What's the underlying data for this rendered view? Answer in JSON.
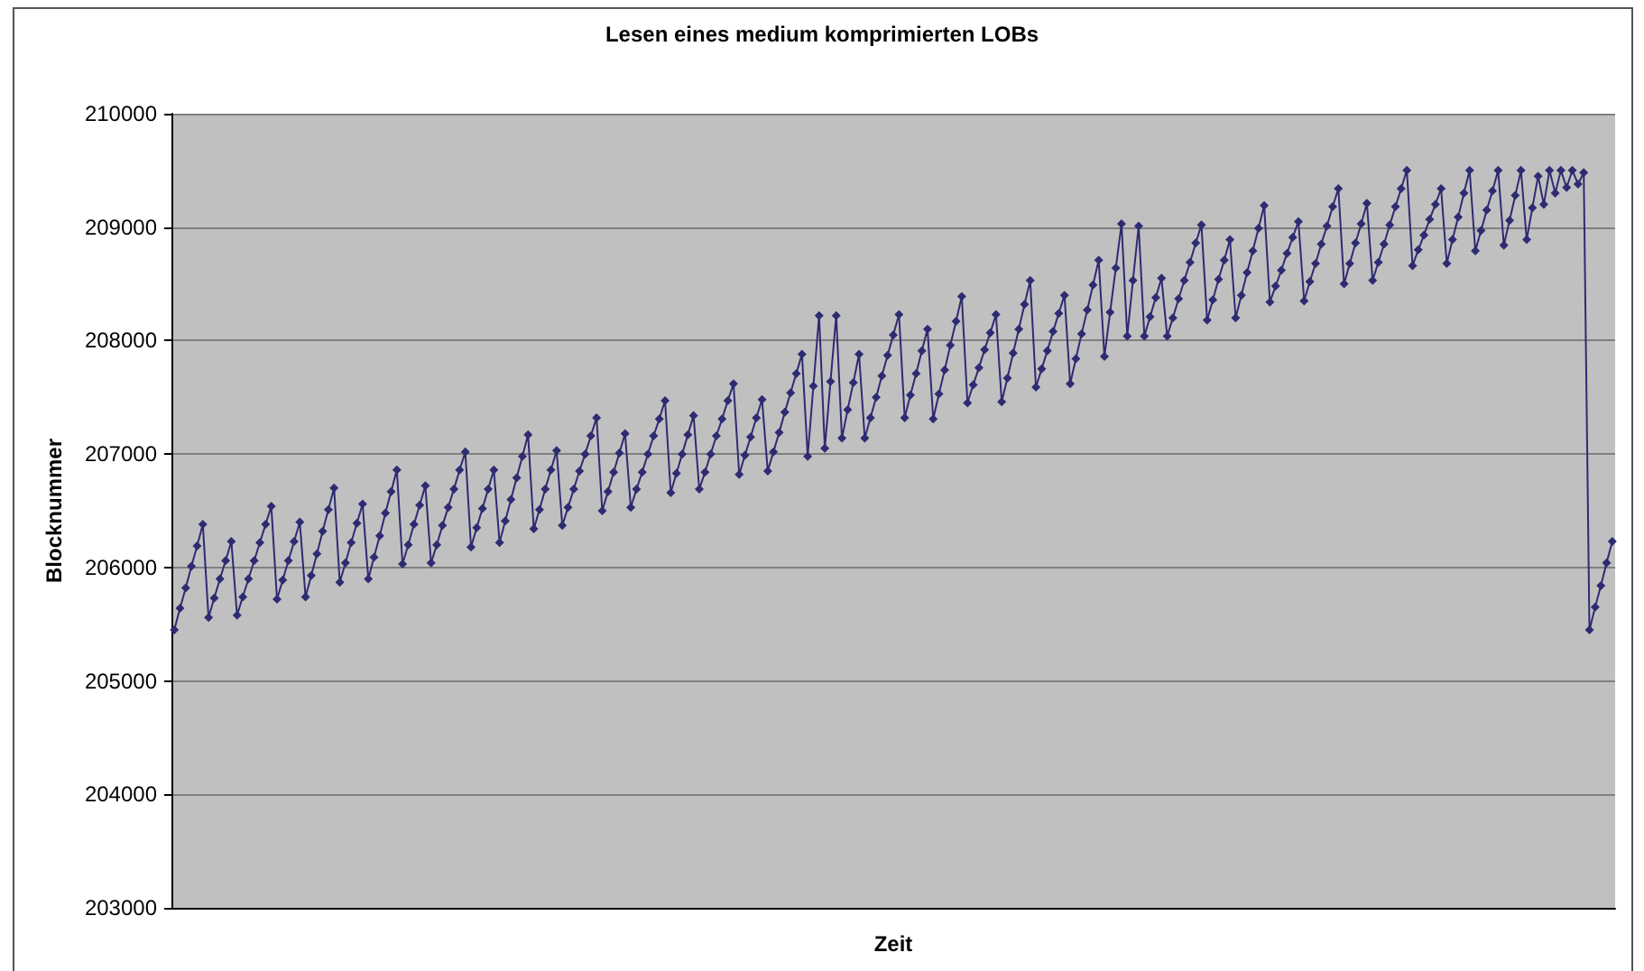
{
  "chart_data": {
    "type": "line",
    "title": "Lesen eines medium komprimierten LOBs",
    "xlabel": "Zeit",
    "ylabel": "Blocknummer",
    "categories": [
      null,
      null,
      null,
      null,
      null,
      null,
      null,
      null,
      null,
      null,
      null,
      null,
      null,
      null,
      null,
      null,
      null,
      null,
      null,
      null,
      null,
      null,
      null,
      null,
      null,
      null,
      null,
      null,
      null,
      null,
      null,
      null,
      null,
      null,
      null,
      null,
      null,
      null,
      null,
      null,
      null,
      null,
      null,
      null,
      null,
      null,
      null,
      null,
      null,
      null,
      null,
      null,
      null,
      null,
      null,
      null,
      null,
      null,
      null,
      null,
      null,
      null,
      null,
      null,
      null,
      null,
      null,
      null,
      null,
      null,
      null,
      null,
      null,
      null,
      null,
      null,
      null,
      null,
      null,
      null,
      null,
      null,
      null,
      null,
      null,
      null,
      null,
      null,
      null,
      null,
      null,
      null,
      null,
      null,
      null,
      null,
      null,
      null,
      null,
      null,
      null,
      null,
      null,
      null,
      null,
      null,
      null,
      null,
      null,
      null,
      null,
      null,
      null,
      null,
      null,
      null,
      null,
      null,
      null,
      null,
      null,
      null,
      null,
      null,
      null,
      null,
      null,
      null,
      null,
      null,
      null,
      null,
      null,
      null,
      null,
      null,
      null,
      null,
      null,
      null,
      null,
      null,
      null,
      null,
      null,
      null,
      null,
      null,
      null,
      null,
      null,
      null,
      null,
      null,
      null,
      null,
      null,
      null,
      null,
      null,
      null,
      null,
      null,
      null,
      null,
      null,
      null,
      null,
      null,
      null,
      null,
      null,
      null,
      null,
      null,
      null,
      null,
      null,
      null,
      null,
      null,
      null,
      null,
      null,
      null,
      null,
      null,
      null,
      null,
      null,
      null,
      null,
      null,
      null,
      null,
      null,
      null,
      null,
      null,
      null,
      null,
      null,
      null,
      null,
      null,
      null,
      null,
      null,
      null,
      null,
      null,
      null,
      null,
      null,
      null,
      null,
      null,
      null,
      null,
      null,
      null,
      null,
      null,
      null,
      null,
      null,
      null,
      null,
      null,
      null,
      null,
      null,
      null,
      null,
      null,
      null,
      null,
      null,
      null,
      null,
      null,
      null,
      null,
      null,
      null,
      null,
      null,
      null,
      null,
      null,
      null,
      null,
      null
    ],
    "values": [
      205450,
      205640,
      205820,
      206010,
      206190,
      206380,
      205560,
      205730,
      205900,
      206060,
      206230,
      205580,
      205740,
      205900,
      206060,
      206220,
      206380,
      206540,
      205720,
      205890,
      206060,
      206230,
      206400,
      205740,
      205930,
      206120,
      206320,
      206510,
      206700,
      205870,
      206040,
      206220,
      206390,
      206560,
      205900,
      206090,
      206280,
      206480,
      206670,
      206860,
      206030,
      206200,
      206380,
      206550,
      206720,
      206040,
      206200,
      206370,
      206530,
      206690,
      206860,
      207020,
      206180,
      206350,
      206520,
      206690,
      206860,
      206220,
      206410,
      206600,
      206790,
      206980,
      207170,
      206340,
      206510,
      206690,
      206860,
      207030,
      206370,
      206530,
      206690,
      206850,
      207000,
      207160,
      207320,
      206500,
      206670,
      206840,
      207010,
      207180,
      206530,
      206690,
      206840,
      207000,
      207160,
      207310,
      207470,
      206660,
      206830,
      207000,
      207170,
      207340,
      206690,
      206840,
      207000,
      207160,
      207310,
      207470,
      207620,
      206820,
      206990,
      207150,
      207320,
      207480,
      206850,
      207020,
      207190,
      207370,
      207540,
      207710,
      207880,
      206980,
      207600,
      208220,
      207050,
      207640,
      208220,
      207140,
      207390,
      207630,
      207880,
      207140,
      207320,
      207500,
      207690,
      207870,
      208050,
      208230,
      207320,
      207520,
      207710,
      207910,
      208100,
      207310,
      207530,
      207740,
      207960,
      208170,
      208390,
      207450,
      207610,
      207760,
      207920,
      208070,
      208230,
      207460,
      207670,
      207890,
      208100,
      208320,
      208530,
      207590,
      207750,
      207910,
      208080,
      208240,
      208400,
      207620,
      207840,
      208060,
      208270,
      208490,
      208710,
      207860,
      208250,
      208640,
      209030,
      208040,
      208530,
      209010,
      208040,
      208210,
      208380,
      208550,
      208040,
      208200,
      208370,
      208530,
      208690,
      208860,
      209020,
      208180,
      208360,
      208540,
      208710,
      208890,
      208200,
      208400,
      208600,
      208790,
      208990,
      209190,
      208340,
      208480,
      208620,
      208770,
      208910,
      209050,
      208350,
      208520,
      208680,
      208850,
      209010,
      209180,
      209340,
      208500,
      208680,
      208860,
      209030,
      209210,
      208530,
      208690,
      208850,
      209020,
      209180,
      209340,
      209500,
      208660,
      208800,
      208930,
      209070,
      209200,
      209340,
      208680,
      208890,
      209090,
      209300,
      209500,
      208790,
      208970,
      209150,
      209320,
      209500,
      208840,
      209060,
      209280,
      209500,
      208890,
      209170,
      209450,
      209200,
      209500,
      209300,
      209500,
      209350,
      209500,
      209380,
      209480,
      205450,
      205650,
      205840,
      206040,
      206230
    ],
    "color": "#2e2b72",
    "marker": "diamond",
    "grid": "y",
    "tick_labels": "y",
    "ylim": [
      203000,
      210000
    ],
    "yticks": [
      203000,
      204000,
      205000,
      206000,
      207000,
      208000,
      209000,
      210000
    ]
  }
}
